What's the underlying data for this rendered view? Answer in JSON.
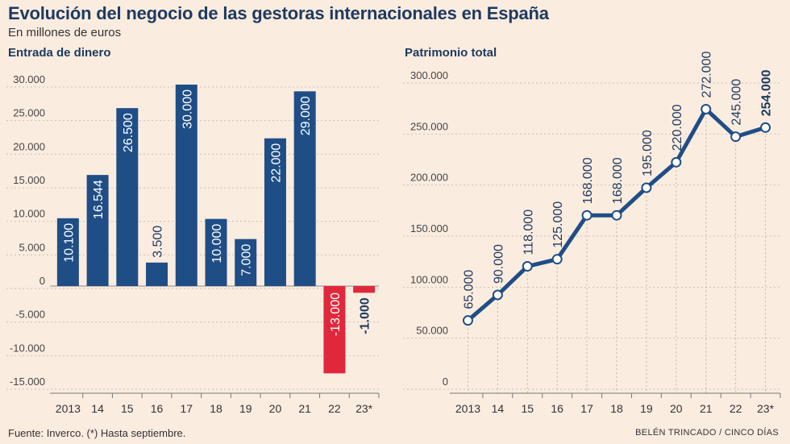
{
  "header": {
    "title": "Evolución del negocio de las gestoras internacionales en España",
    "subtitle": "En millones de euros"
  },
  "footer": {
    "source": "Fuente: Inverco. (*) Hasta septiembre.",
    "credit": "BELÉN TRINCADO / CINCO DÍAS"
  },
  "colors": {
    "bar_positive": "#1f4e86",
    "bar_negative": "#e0283c",
    "line": "#1f4e86",
    "background": "#fbece0"
  },
  "chart_data": [
    {
      "type": "bar",
      "title": "Entrada de dinero",
      "categories": [
        "2013",
        "14",
        "15",
        "16",
        "17",
        "18",
        "19",
        "20",
        "21",
        "22",
        "23*"
      ],
      "values": [
        10100,
        16544,
        26500,
        3500,
        30000,
        10000,
        7000,
        22000,
        29000,
        -13000,
        -1000
      ],
      "value_labels": [
        "10.100",
        "16.544",
        "26.500",
        "3.500",
        "30.000",
        "10.000",
        "7.000",
        "22.000",
        "29.000",
        "-13.000",
        "-1.000"
      ],
      "yticks": [
        "30.000",
        "25.000",
        "20.000",
        "15.000",
        "10.000",
        "5.000",
        "0",
        "-5.000",
        "-10.000",
        "-15.000"
      ],
      "ylim": [
        -15000,
        30000
      ],
      "grid": true
    },
    {
      "type": "line",
      "title": "Patrimonio total",
      "categories": [
        "2013",
        "14",
        "15",
        "16",
        "17",
        "18",
        "19",
        "20",
        "21",
        "22",
        "23*"
      ],
      "values": [
        65000,
        90000,
        118000,
        125000,
        168000,
        168000,
        195000,
        220000,
        272000,
        245000,
        254000
      ],
      "value_labels": [
        "65.000",
        "90.000",
        "118.000",
        "125.000",
        "168.000",
        "168.000",
        "195.000",
        "220.000",
        "272.000",
        "245.000",
        "254.000"
      ],
      "yticks": [
        "300.000",
        "250.000",
        "200.000",
        "150.000",
        "100.000",
        "50.000",
        "0"
      ],
      "ylim": [
        0,
        300000
      ],
      "grid": true
    }
  ]
}
